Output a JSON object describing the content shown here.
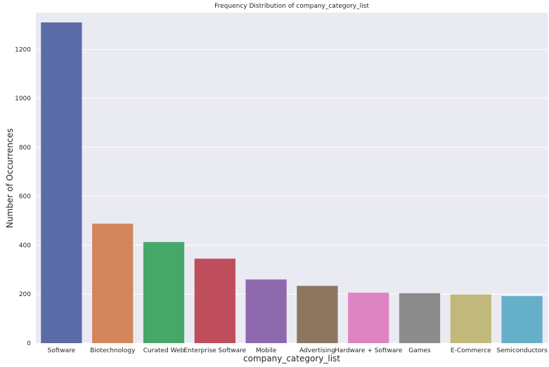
{
  "chart_data": {
    "type": "bar",
    "title": "Frequency Distribution of company_category_list",
    "xlabel": "company_category_list",
    "ylabel": "Number of Occurrences",
    "categories": [
      "Software",
      "Biotechnology",
      "Curated Web",
      "Enterprise Software",
      "Mobile",
      "Advertising",
      "Hardware + Software",
      "Games",
      "E-Commerce",
      "Semiconductors"
    ],
    "values": [
      1310,
      488,
      413,
      345,
      260,
      234,
      206,
      204,
      199,
      192
    ],
    "colors": [
      "#5a6ba8",
      "#d3855b",
      "#47a769",
      "#be4e5c",
      "#8d69ae",
      "#8c7660",
      "#de84c2",
      "#8c8c8c",
      "#c1b87b",
      "#66afc8"
    ],
    "ylim": [
      0,
      1350
    ],
    "yticks": [
      0,
      200,
      400,
      600,
      800,
      1000,
      1200
    ],
    "grid": true,
    "background": "#eaeaf2"
  }
}
